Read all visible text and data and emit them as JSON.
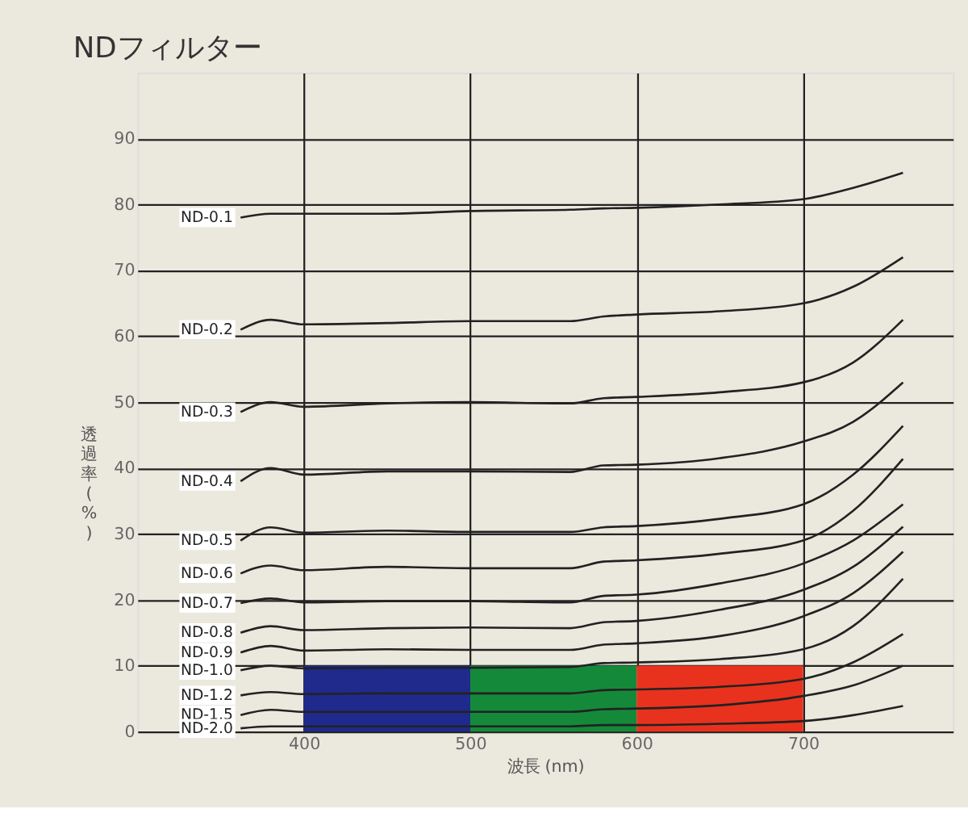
{
  "chart_data": {
    "type": "line",
    "title": "NDフィルター",
    "xlabel": "波長 (nm)",
    "ylabel": "透過率 (%)",
    "x": [
      362,
      380,
      400,
      450,
      500,
      560,
      580,
      600,
      650,
      700,
      730,
      760
    ],
    "series": [
      {
        "name": "ND-0.1",
        "color": "#222222",
        "values": [
          78,
          78.6,
          78.6,
          78.6,
          79,
          79.2,
          79.4,
          79.5,
          80,
          80.8,
          82.5,
          84.8
        ]
      },
      {
        "name": "ND-0.2",
        "color": "#222222",
        "values": [
          61,
          62.5,
          61.8,
          62,
          62.3,
          62.3,
          63,
          63.3,
          63.8,
          65,
          67.5,
          72
        ]
      },
      {
        "name": "ND-0.3",
        "color": "#222222",
        "values": [
          48.5,
          50,
          49.3,
          49.8,
          50,
          49.8,
          50.6,
          50.8,
          51.5,
          53,
          56,
          62.5
        ]
      },
      {
        "name": "ND-0.4",
        "color": "#222222",
        "values": [
          38,
          40,
          39,
          39.5,
          39.5,
          39.4,
          40.4,
          40.5,
          41.5,
          44,
          47,
          53
        ]
      },
      {
        "name": "ND-0.5",
        "color": "#222222",
        "values": [
          29,
          31,
          30.2,
          30.5,
          30.3,
          30.3,
          31,
          31.2,
          32.3,
          34.5,
          39,
          46.4
        ]
      },
      {
        "name": "ND-0.6",
        "color": "#222222",
        "values": [
          24,
          25.2,
          24.5,
          25,
          24.8,
          24.8,
          25.8,
          26,
          27,
          29,
          33.5,
          41.4
        ]
      },
      {
        "name": "ND-0.7",
        "color": "#222222",
        "values": [
          19.5,
          20.2,
          19.6,
          19.8,
          19.8,
          19.6,
          20.6,
          20.8,
          22.5,
          25.5,
          29,
          34.5
        ]
      },
      {
        "name": "ND-0.8",
        "color": "#222222",
        "values": [
          15,
          16,
          15.4,
          15.7,
          15.8,
          15.7,
          16.6,
          16.8,
          18.5,
          21.5,
          25,
          31.1
        ]
      },
      {
        "name": "ND-0.9",
        "color": "#222222",
        "values": [
          12,
          13,
          12.3,
          12.5,
          12.4,
          12.4,
          13.2,
          13.4,
          14.5,
          17.5,
          21,
          27.3
        ]
      },
      {
        "name": "ND-1.0",
        "color": "#222222",
        "values": [
          9.3,
          10,
          9.6,
          9.7,
          9.7,
          9.8,
          10.4,
          10.5,
          11,
          12.5,
          16,
          23.2
        ]
      },
      {
        "name": "ND-1.2",
        "color": "#222222",
        "values": [
          5.5,
          6,
          5.7,
          5.8,
          5.8,
          5.8,
          6.3,
          6.4,
          6.8,
          8,
          10.5,
          14.8
        ]
      },
      {
        "name": "ND-1.5",
        "color": "#222222",
        "values": [
          2.5,
          3.3,
          3,
          3,
          3,
          3,
          3.4,
          3.5,
          4,
          5.4,
          7,
          10
        ]
      },
      {
        "name": "ND-2.0",
        "color": "#222222",
        "values": [
          0.5,
          0.8,
          0.8,
          0.8,
          0.8,
          0.8,
          1,
          1,
          1.2,
          1.6,
          2.5,
          3.9
        ]
      }
    ],
    "bands": [
      {
        "axis": "x",
        "from": 400,
        "to": 500,
        "color": "#1f2a8c"
      },
      {
        "axis": "x",
        "from": 500,
        "to": 600,
        "color": "#15893a"
      },
      {
        "axis": "x",
        "from": 600,
        "to": 700,
        "color": "#e8321e"
      }
    ],
    "xlim": [
      300,
      790
    ],
    "ylim": [
      0,
      100
    ],
    "xticks": [
      400,
      500,
      600,
      700
    ],
    "yticks": [
      0,
      10,
      20,
      30,
      40,
      50,
      60,
      70,
      80,
      90
    ],
    "grid": true,
    "marker": "none",
    "line_style": "solid"
  }
}
